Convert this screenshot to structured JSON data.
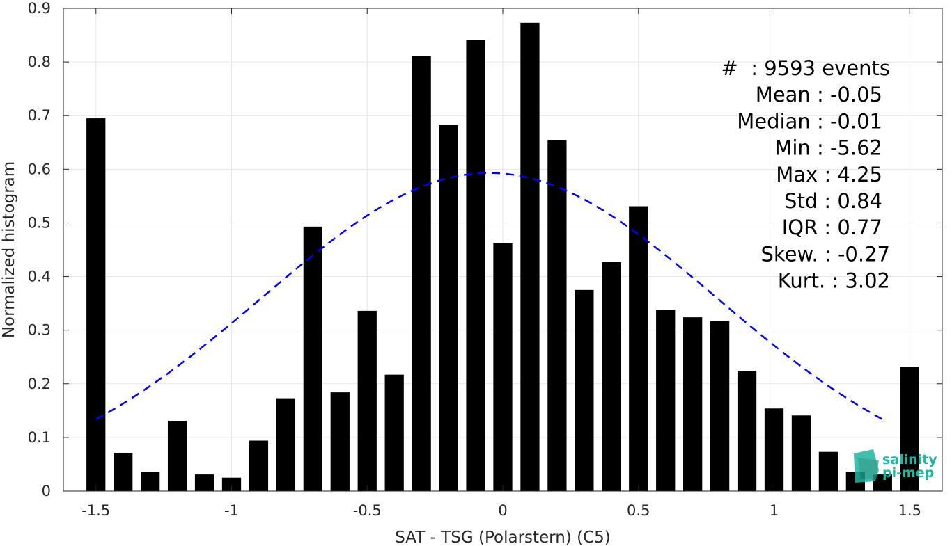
{
  "chart_data": {
    "type": "bar",
    "xlabel": "SAT - TSG (Polarstern) (C5)",
    "ylabel": "Normalized histogram",
    "xlim": [
      -1.62,
      1.62
    ],
    "ylim": [
      0,
      0.9
    ],
    "xticks": [
      -1.5,
      -1,
      -0.5,
      0,
      0.5,
      1,
      1.5
    ],
    "xtick_labels": [
      "-1.5",
      "-1",
      "-0.5",
      "0",
      "0.5",
      "1",
      "1.5"
    ],
    "yticks": [
      0,
      0.1,
      0.2,
      0.3,
      0.4,
      0.5,
      0.6,
      0.7,
      0.8,
      0.9
    ],
    "ytick_labels": [
      "0",
      "0.1",
      "0.2",
      "0.3",
      "0.4",
      "0.5",
      "0.6",
      "0.7",
      "0.8",
      "0.9"
    ],
    "grid": true,
    "bar_width": 0.07,
    "bars": {
      "x": [
        -1.5,
        -1.4,
        -1.3,
        -1.2,
        -1.1,
        -1.0,
        -0.9,
        -0.8,
        -0.7,
        -0.6,
        -0.5,
        -0.4,
        -0.3,
        -0.2,
        -0.1,
        0.0,
        0.1,
        0.2,
        0.3,
        0.4,
        0.5,
        0.6,
        0.7,
        0.8,
        0.9,
        1.0,
        1.1,
        1.2,
        1.3,
        1.4,
        1.5
      ],
      "values": [
        0.695,
        0.071,
        0.036,
        0.131,
        0.031,
        0.025,
        0.094,
        0.173,
        0.493,
        0.184,
        0.336,
        0.217,
        0.811,
        0.683,
        0.841,
        0.462,
        0.873,
        0.654,
        0.375,
        0.427,
        0.531,
        0.338,
        0.324,
        0.317,
        0.224,
        0.154,
        0.141,
        0.073,
        0.036,
        0.031,
        0.231
      ],
      "color": "#000000"
    },
    "fit_curve": {
      "style": "dashed",
      "color": "#0000ff",
      "mean": -0.05,
      "std": 0.84,
      "peak": 0.593,
      "x_range": [
        -1.5,
        1.4
      ]
    },
    "stats": [
      "#  : 9593 events",
      "Mean : -0.05",
      "Median : -0.01",
      "Min : -5.62",
      "Max : 4.25",
      "Std : 0.84",
      "IQR : 0.77",
      "Skew. : -0.27",
      "Kurt. : 3.02"
    ]
  },
  "logo": {
    "line1": "salinity",
    "line2": "pi-mep",
    "color": "#1fb5a0"
  }
}
